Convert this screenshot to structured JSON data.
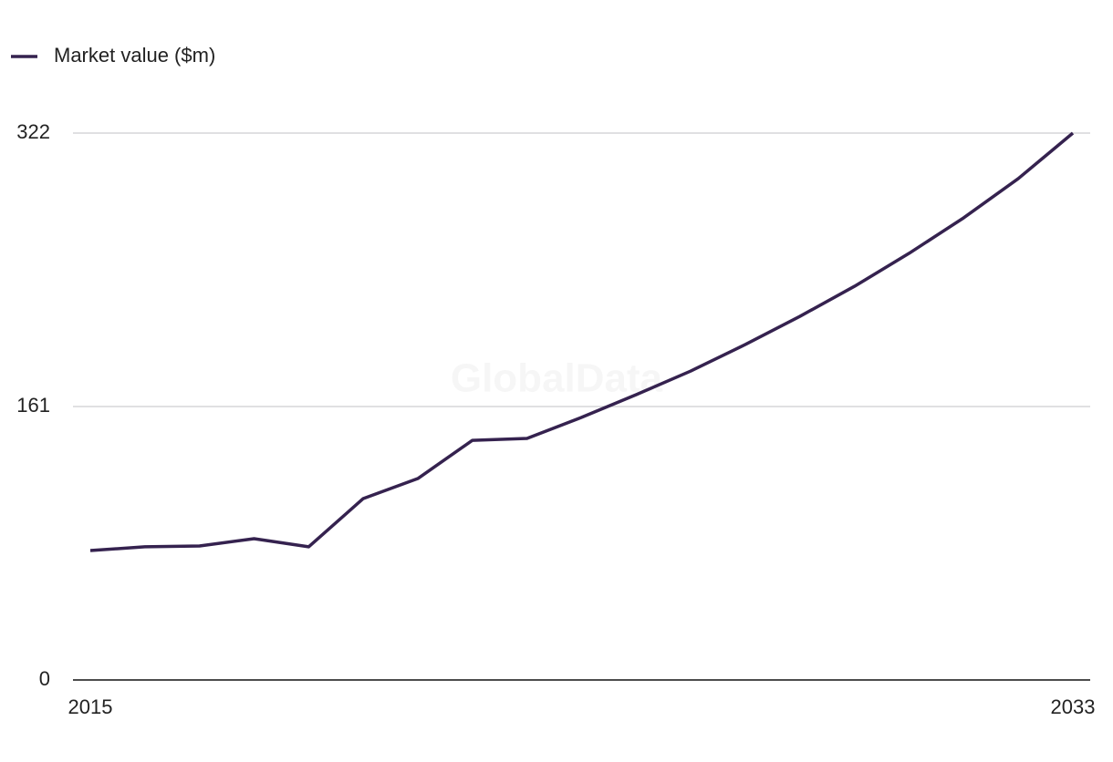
{
  "chart_data": {
    "type": "line",
    "watermark": "GlobalData",
    "x": [
      2015,
      2016,
      2017,
      2018,
      2019,
      2020,
      2021,
      2022,
      2023,
      2024,
      2025,
      2026,
      2027,
      2028,
      2029,
      2030,
      2031,
      2032,
      2033
    ],
    "series": [
      {
        "name": "Market value ($m)",
        "color": "#35224f",
        "values": [
          76.2,
          78.4,
          78.9,
          83.2,
          78.4,
          106.8,
          118.6,
          141.1,
          142.2,
          154.6,
          168.0,
          181.9,
          197.5,
          214.1,
          231.8,
          251.2,
          272.1,
          295.2,
          322
        ]
      }
    ],
    "xlim": [
      2015,
      2033
    ],
    "xticks": [
      2015,
      2033
    ],
    "ylim": [
      0,
      322
    ],
    "yticks": [
      0,
      161,
      322
    ],
    "grid": true,
    "legend": "top-left"
  }
}
